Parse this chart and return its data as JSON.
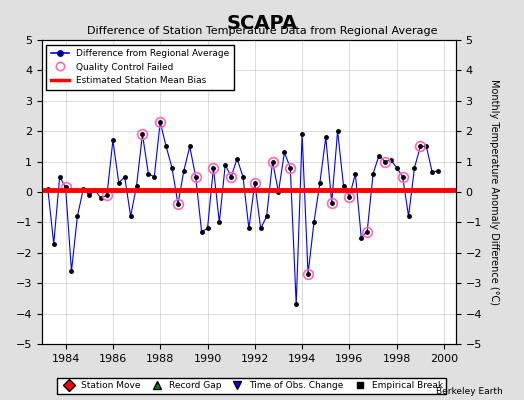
{
  "title": "SCAPA",
  "subtitle": "Difference of Station Temperature Data from Regional Average",
  "ylabel": "Monthly Temperature Anomaly Difference (°C)",
  "xlim": [
    1983.0,
    2000.5
  ],
  "ylim": [
    -5,
    5
  ],
  "yticks": [
    -5,
    -4,
    -3,
    -2,
    -1,
    0,
    1,
    2,
    3,
    4,
    5
  ],
  "xticks": [
    1984,
    1986,
    1988,
    1990,
    1992,
    1994,
    1996,
    1998,
    2000
  ],
  "bias_line_y": 0.05,
  "background_color": "#e0e0e0",
  "plot_bg_color": "#ffffff",
  "data_line_color": "#0000ff",
  "bias_line_color": "#ff0000",
  "qc_marker_color": "#ff69b4",
  "data_marker_color": "#000000",
  "years": [
    1983.25,
    1983.5,
    1983.75,
    1984.0,
    1984.25,
    1984.5,
    1984.75,
    1985.0,
    1985.25,
    1985.5,
    1985.75,
    1986.0,
    1986.25,
    1986.5,
    1986.75,
    1987.0,
    1987.25,
    1987.5,
    1987.75,
    1988.0,
    1988.25,
    1988.5,
    1988.75,
    1989.0,
    1989.25,
    1989.5,
    1989.75,
    1990.0,
    1990.25,
    1990.5,
    1990.75,
    1991.0,
    1991.25,
    1991.5,
    1991.75,
    1992.0,
    1992.25,
    1992.5,
    1992.75,
    1993.0,
    1993.25,
    1993.5,
    1993.75,
    1994.0,
    1994.25,
    1994.5,
    1994.75,
    1995.0,
    1995.25,
    1995.5,
    1995.75,
    1996.0,
    1996.25,
    1996.5,
    1996.75,
    1997.0,
    1997.25,
    1997.5,
    1997.75,
    1998.0,
    1998.25,
    1998.5,
    1998.75,
    1999.0,
    1999.25,
    1999.5,
    1999.75
  ],
  "values": [
    0.1,
    -1.7,
    0.5,
    0.15,
    -2.6,
    -0.8,
    0.1,
    -0.1,
    0.05,
    -0.2,
    -0.1,
    1.7,
    0.3,
    0.5,
    -0.8,
    0.2,
    1.9,
    0.6,
    0.5,
    2.3,
    1.5,
    0.8,
    -0.4,
    0.7,
    1.5,
    0.5,
    -1.3,
    -1.2,
    0.8,
    -1.0,
    0.9,
    0.5,
    1.1,
    0.5,
    -1.2,
    0.3,
    -1.2,
    -0.8,
    1.0,
    0.0,
    1.3,
    0.8,
    -3.7,
    1.9,
    -2.7,
    -1.0,
    0.3,
    1.8,
    -0.35,
    2.0,
    0.2,
    -0.15,
    0.6,
    -1.5,
    -1.3,
    0.6,
    1.2,
    1.0,
    1.05,
    0.8,
    0.5,
    -0.8,
    0.8,
    1.5,
    1.5,
    0.65,
    0.7
  ],
  "qc_failed_indices": [
    3,
    10,
    16,
    19,
    22,
    25,
    28,
    31,
    35,
    38,
    41,
    44,
    48,
    51,
    54,
    57,
    60,
    63
  ]
}
